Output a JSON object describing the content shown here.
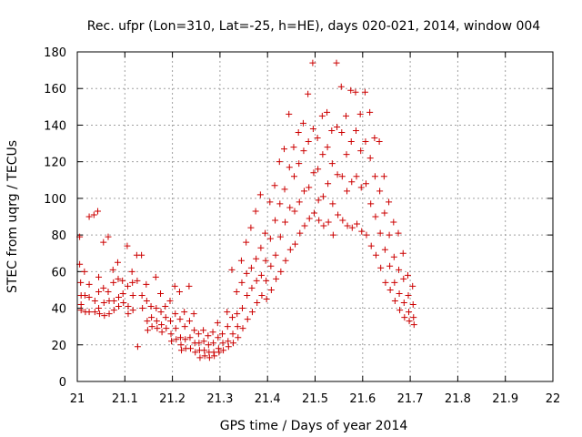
{
  "colors": {
    "marker": "#cc0000",
    "grid": "#a0a0a0",
    "axis": "#000000"
  },
  "chart_data": {
    "type": "scatter",
    "title": "Rec. ufpr (Lon=310, Lat=-25, h=HE), days 020-021, 2014, window 004",
    "xlabel": "GPS time / Days of year 2014",
    "ylabel": "STEC from uqrg / TECUs",
    "xlim": [
      21,
      22
    ],
    "ylim": [
      0,
      180
    ],
    "xticks": [
      "21",
      "21.1",
      "21.2",
      "21.3",
      "21.4",
      "21.5",
      "21.6",
      "21.7",
      "21.8",
      "21.9",
      "22"
    ],
    "yticks": [
      "0",
      "20",
      "40",
      "60",
      "80",
      "100",
      "120",
      "140",
      "160",
      "180"
    ],
    "grid": true,
    "marker": "plus",
    "points": [
      [
        21.005,
        79
      ],
      [
        21.005,
        64
      ],
      [
        21.007,
        54
      ],
      [
        21.008,
        47
      ],
      [
        21.008,
        42
      ],
      [
        21.008,
        39
      ],
      [
        21.015,
        60
      ],
      [
        21.016,
        47
      ],
      [
        21.017,
        38
      ],
      [
        21.025,
        90
      ],
      [
        21.025,
        53
      ],
      [
        21.025,
        46
      ],
      [
        21.025,
        38
      ],
      [
        21.035,
        91
      ],
      [
        21.037,
        44
      ],
      [
        21.037,
        38
      ],
      [
        21.043,
        93
      ],
      [
        21.045,
        57
      ],
      [
        21.045,
        49
      ],
      [
        21.045,
        40
      ],
      [
        21.047,
        37
      ],
      [
        21.055,
        76
      ],
      [
        21.055,
        51
      ],
      [
        21.056,
        43
      ],
      [
        21.057,
        36
      ],
      [
        21.065,
        79
      ],
      [
        21.065,
        49
      ],
      [
        21.067,
        44
      ],
      [
        21.067,
        37
      ],
      [
        21.075,
        61
      ],
      [
        21.076,
        54
      ],
      [
        21.077,
        44
      ],
      [
        21.077,
        39
      ],
      [
        21.085,
        65
      ],
      [
        21.086,
        56
      ],
      [
        21.087,
        46
      ],
      [
        21.087,
        41
      ],
      [
        21.095,
        55
      ],
      [
        21.096,
        48
      ],
      [
        21.097,
        43
      ],
      [
        21.105,
        74
      ],
      [
        21.106,
        52
      ],
      [
        21.107,
        41
      ],
      [
        21.107,
        37
      ],
      [
        21.115,
        60
      ],
      [
        21.116,
        54
      ],
      [
        21.117,
        47
      ],
      [
        21.117,
        39
      ],
      [
        21.125,
        69
      ],
      [
        21.126,
        55
      ],
      [
        21.127,
        19
      ],
      [
        21.135,
        69
      ],
      [
        21.136,
        47
      ],
      [
        21.137,
        40
      ],
      [
        21.145,
        53
      ],
      [
        21.146,
        44
      ],
      [
        21.147,
        33
      ],
      [
        21.148,
        28
      ],
      [
        21.155,
        41
      ],
      [
        21.156,
        35
      ],
      [
        21.157,
        30
      ],
      [
        21.165,
        57
      ],
      [
        21.166,
        40
      ],
      [
        21.167,
        33
      ],
      [
        21.168,
        29
      ],
      [
        21.175,
        48
      ],
      [
        21.176,
        38
      ],
      [
        21.177,
        31
      ],
      [
        21.178,
        27
      ],
      [
        21.185,
        41
      ],
      [
        21.186,
        35
      ],
      [
        21.187,
        29
      ],
      [
        21.195,
        44
      ],
      [
        21.196,
        33
      ],
      [
        21.197,
        26
      ],
      [
        21.198,
        22
      ],
      [
        21.205,
        52
      ],
      [
        21.206,
        37
      ],
      [
        21.207,
        29
      ],
      [
        21.208,
        23
      ],
      [
        21.215,
        49
      ],
      [
        21.216,
        34
      ],
      [
        21.217,
        24
      ],
      [
        21.218,
        20
      ],
      [
        21.219,
        17
      ],
      [
        21.225,
        38
      ],
      [
        21.226,
        30
      ],
      [
        21.227,
        23
      ],
      [
        21.228,
        18
      ],
      [
        21.235,
        52
      ],
      [
        21.236,
        33
      ],
      [
        21.237,
        24
      ],
      [
        21.238,
        18
      ],
      [
        21.245,
        37
      ],
      [
        21.246,
        28
      ],
      [
        21.247,
        21
      ],
      [
        21.248,
        16
      ],
      [
        21.255,
        26
      ],
      [
        21.256,
        21
      ],
      [
        21.257,
        17
      ],
      [
        21.258,
        13
      ],
      [
        21.265,
        28
      ],
      [
        21.266,
        22
      ],
      [
        21.267,
        17
      ],
      [
        21.268,
        14
      ],
      [
        21.275,
        25
      ],
      [
        21.276,
        20
      ],
      [
        21.277,
        16
      ],
      [
        21.278,
        13
      ],
      [
        21.285,
        27
      ],
      [
        21.286,
        21
      ],
      [
        21.287,
        16
      ],
      [
        21.288,
        14
      ],
      [
        21.295,
        32
      ],
      [
        21.296,
        24
      ],
      [
        21.297,
        18
      ],
      [
        21.298,
        16
      ],
      [
        21.305,
        26
      ],
      [
        21.306,
        21
      ],
      [
        21.307,
        17
      ],
      [
        21.315,
        38
      ],
      [
        21.316,
        30
      ],
      [
        21.317,
        22
      ],
      [
        21.318,
        19
      ],
      [
        21.325,
        61
      ],
      [
        21.326,
        35
      ],
      [
        21.327,
        26
      ],
      [
        21.328,
        21
      ],
      [
        21.335,
        49
      ],
      [
        21.336,
        37
      ],
      [
        21.337,
        30
      ],
      [
        21.338,
        24
      ],
      [
        21.345,
        66
      ],
      [
        21.346,
        54
      ],
      [
        21.347,
        40
      ],
      [
        21.348,
        29
      ],
      [
        21.355,
        76
      ],
      [
        21.356,
        59
      ],
      [
        21.357,
        47
      ],
      [
        21.358,
        34
      ],
      [
        21.365,
        84
      ],
      [
        21.366,
        62
      ],
      [
        21.367,
        51
      ],
      [
        21.368,
        38
      ],
      [
        21.375,
        93
      ],
      [
        21.376,
        67
      ],
      [
        21.377,
        55
      ],
      [
        21.378,
        43
      ],
      [
        21.385,
        102
      ],
      [
        21.386,
        73
      ],
      [
        21.387,
        58
      ],
      [
        21.388,
        47
      ],
      [
        21.395,
        81
      ],
      [
        21.396,
        66
      ],
      [
        21.397,
        55
      ],
      [
        21.398,
        45
      ],
      [
        21.405,
        98
      ],
      [
        21.406,
        78
      ],
      [
        21.407,
        63
      ],
      [
        21.408,
        50
      ],
      [
        21.415,
        107
      ],
      [
        21.416,
        88
      ],
      [
        21.417,
        69
      ],
      [
        21.418,
        56
      ],
      [
        21.425,
        120
      ],
      [
        21.426,
        97
      ],
      [
        21.427,
        79
      ],
      [
        21.428,
        60
      ],
      [
        21.435,
        127
      ],
      [
        21.436,
        105
      ],
      [
        21.437,
        87
      ],
      [
        21.438,
        66
      ],
      [
        21.445,
        146
      ],
      [
        21.446,
        117
      ],
      [
        21.447,
        95
      ],
      [
        21.448,
        72
      ],
      [
        21.455,
        128
      ],
      [
        21.456,
        112
      ],
      [
        21.457,
        93
      ],
      [
        21.458,
        75
      ],
      [
        21.465,
        136
      ],
      [
        21.466,
        119
      ],
      [
        21.467,
        98
      ],
      [
        21.468,
        81
      ],
      [
        21.475,
        141
      ],
      [
        21.476,
        126
      ],
      [
        21.477,
        104
      ],
      [
        21.478,
        85
      ],
      [
        21.485,
        157
      ],
      [
        21.486,
        131
      ],
      [
        21.487,
        106
      ],
      [
        21.488,
        89
      ],
      [
        21.495,
        174
      ],
      [
        21.496,
        138
      ],
      [
        21.497,
        114
      ],
      [
        21.498,
        92
      ],
      [
        21.505,
        133
      ],
      [
        21.506,
        116
      ],
      [
        21.507,
        99
      ],
      [
        21.508,
        88
      ],
      [
        21.515,
        145
      ],
      [
        21.516,
        124
      ],
      [
        21.517,
        101
      ],
      [
        21.518,
        85
      ],
      [
        21.525,
        147
      ],
      [
        21.526,
        128
      ],
      [
        21.527,
        108
      ],
      [
        21.528,
        87
      ],
      [
        21.535,
        137
      ],
      [
        21.536,
        119
      ],
      [
        21.537,
        97
      ],
      [
        21.538,
        80
      ],
      [
        21.545,
        174
      ],
      [
        21.546,
        139
      ],
      [
        21.547,
        113
      ],
      [
        21.548,
        91
      ],
      [
        21.555,
        161
      ],
      [
        21.556,
        136
      ],
      [
        21.557,
        112
      ],
      [
        21.558,
        88
      ],
      [
        21.565,
        145
      ],
      [
        21.566,
        124
      ],
      [
        21.567,
        104
      ],
      [
        21.568,
        85
      ],
      [
        21.575,
        159
      ],
      [
        21.576,
        131
      ],
      [
        21.577,
        109
      ],
      [
        21.578,
        84
      ],
      [
        21.585,
        158
      ],
      [
        21.586,
        137
      ],
      [
        21.587,
        112
      ],
      [
        21.588,
        86
      ],
      [
        21.595,
        146
      ],
      [
        21.596,
        126
      ],
      [
        21.597,
        106
      ],
      [
        21.598,
        82
      ],
      [
        21.605,
        158
      ],
      [
        21.606,
        131
      ],
      [
        21.607,
        108
      ],
      [
        21.608,
        80
      ],
      [
        21.615,
        147
      ],
      [
        21.616,
        122
      ],
      [
        21.617,
        97
      ],
      [
        21.618,
        74
      ],
      [
        21.625,
        133
      ],
      [
        21.626,
        112
      ],
      [
        21.627,
        90
      ],
      [
        21.628,
        69
      ],
      [
        21.635,
        131
      ],
      [
        21.636,
        104
      ],
      [
        21.637,
        81
      ],
      [
        21.638,
        62
      ],
      [
        21.645,
        112
      ],
      [
        21.646,
        92
      ],
      [
        21.647,
        72
      ],
      [
        21.648,
        54
      ],
      [
        21.655,
        98
      ],
      [
        21.656,
        80
      ],
      [
        21.657,
        63
      ],
      [
        21.658,
        50
      ],
      [
        21.665,
        87
      ],
      [
        21.666,
        68
      ],
      [
        21.667,
        54
      ],
      [
        21.668,
        44
      ],
      [
        21.675,
        81
      ],
      [
        21.676,
        61
      ],
      [
        21.677,
        48
      ],
      [
        21.678,
        39
      ],
      [
        21.685,
        70
      ],
      [
        21.686,
        56
      ],
      [
        21.687,
        43
      ],
      [
        21.688,
        35
      ],
      [
        21.695,
        58
      ],
      [
        21.696,
        47
      ],
      [
        21.697,
        38
      ],
      [
        21.698,
        33
      ],
      [
        21.705,
        52
      ],
      [
        21.706,
        42
      ],
      [
        21.707,
        35
      ],
      [
        21.708,
        31
      ]
    ]
  }
}
